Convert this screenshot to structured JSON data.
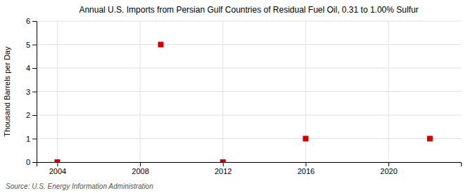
{
  "chart_data": {
    "type": "scatter",
    "title": "Annual U.S. Imports from Persian Gulf Countries of Residual Fuel Oil, 0.31 to 1.00% Sulfur",
    "ylabel": "Thousand Barrels per Day",
    "x": [
      2004,
      2009,
      2012,
      2016,
      2022
    ],
    "values": [
      0,
      5,
      0,
      1,
      1
    ],
    "color": "#cc0000",
    "marker": "square",
    "xlim": [
      2003,
      2023.5
    ],
    "ylim": [
      0,
      6
    ],
    "xticks": [
      2004,
      2008,
      2012,
      2016,
      2020
    ],
    "yticks": [
      0,
      1,
      2,
      3,
      4,
      5,
      6
    ],
    "grid": true,
    "annotations": [
      "Source: U.S. Energy Information Administration"
    ]
  }
}
